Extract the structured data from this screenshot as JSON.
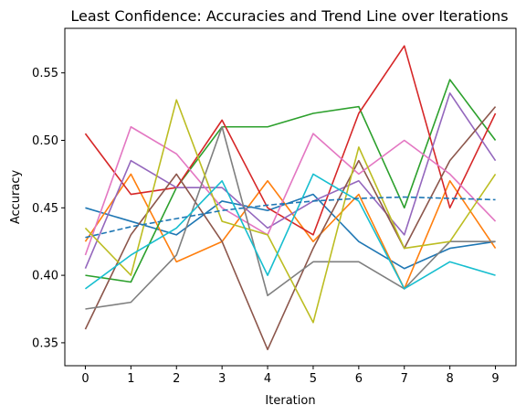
{
  "chart_data": {
    "type": "line",
    "title": "Least Confidence: Accuracies and Trend Line over Iterations",
    "xlabel": "Iteration",
    "ylabel": "Accuracy",
    "x": [
      0,
      1,
      2,
      3,
      4,
      5,
      6,
      7,
      8,
      9
    ],
    "xlim": [
      -0.45,
      9.45
    ],
    "ylim": [
      0.333,
      0.583
    ],
    "yticks": [
      0.35,
      0.4,
      0.45,
      0.5,
      0.55
    ],
    "ytick_labels": [
      "0.35",
      "0.40",
      "0.45",
      "0.50",
      "0.55"
    ],
    "xticks": [
      0,
      1,
      2,
      3,
      4,
      5,
      6,
      7,
      8,
      9
    ],
    "xtick_labels": [
      "0",
      "1",
      "2",
      "3",
      "4",
      "5",
      "6",
      "7",
      "8",
      "9"
    ],
    "grid": false,
    "legend": "none",
    "series": [
      {
        "color": "#1f77b4",
        "values": [
          0.45,
          0.44,
          0.43,
          0.455,
          0.448,
          0.46,
          0.425,
          0.405,
          0.42,
          0.425
        ]
      },
      {
        "color": "#ff7f0e",
        "values": [
          0.425,
          0.475,
          0.41,
          0.425,
          0.47,
          0.425,
          0.46,
          0.39,
          0.47,
          0.42
        ]
      },
      {
        "color": "#2ca02c",
        "values": [
          0.4,
          0.395,
          0.465,
          0.51,
          0.51,
          0.52,
          0.525,
          0.45,
          0.545,
          0.5
        ]
      },
      {
        "color": "#d62728",
        "values": [
          0.505,
          0.46,
          0.465,
          0.515,
          0.45,
          0.43,
          0.52,
          0.57,
          0.45,
          0.52
        ]
      },
      {
        "color": "#9467bd",
        "values": [
          0.405,
          0.485,
          0.465,
          0.465,
          0.435,
          0.455,
          0.47,
          0.43,
          0.535,
          0.485
        ]
      },
      {
        "color": "#8c564b",
        "values": [
          0.36,
          0.43,
          0.475,
          0.425,
          0.345,
          0.42,
          0.485,
          0.42,
          0.485,
          0.525
        ]
      },
      {
        "color": "#e377c2",
        "values": [
          0.415,
          0.51,
          0.49,
          0.45,
          0.43,
          0.505,
          0.475,
          0.5,
          0.475,
          0.44
        ]
      },
      {
        "color": "#7f7f7f",
        "values": [
          0.375,
          0.38,
          0.415,
          0.51,
          0.385,
          0.41,
          0.41,
          0.39,
          0.425,
          0.425
        ]
      },
      {
        "color": "#bcbd22",
        "values": [
          0.435,
          0.4,
          0.53,
          0.44,
          0.43,
          0.365,
          0.495,
          0.42,
          0.425,
          0.475
        ]
      },
      {
        "color": "#17becf",
        "values": [
          0.39,
          0.415,
          0.435,
          0.47,
          0.4,
          0.475,
          0.455,
          0.39,
          0.41,
          0.4
        ]
      }
    ],
    "trend_line": {
      "color": "#1f77b4",
      "style": "dashed",
      "values": [
        0.428,
        0.436,
        0.442,
        0.448,
        0.452,
        0.455,
        0.457,
        0.458,
        0.457,
        0.456
      ]
    }
  }
}
